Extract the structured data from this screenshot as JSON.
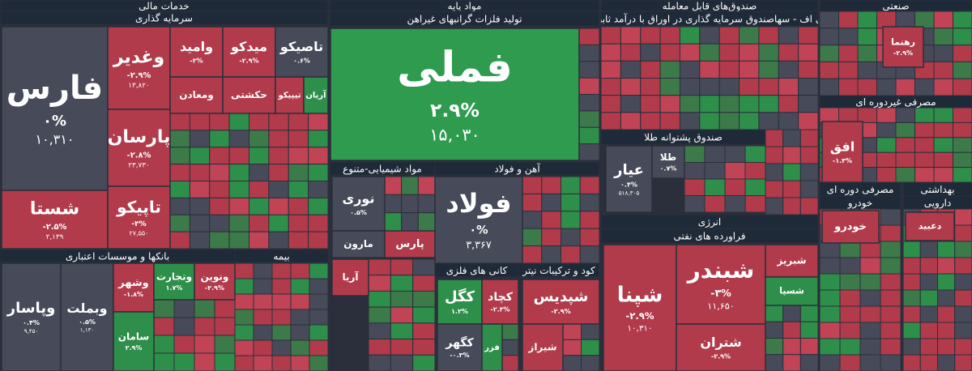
{
  "headers": [
    "خدمات مالی",
    "سرمایه گذاری",
    "بانکها و موسسات اعتباری",
    "بیمه",
    "مواد پایه",
    "تولید فلزات گرانبهای غیراهن",
    "مواد شیمیایی-متنوع",
    "آهن و فولاد",
    "کانی های فلزی",
    "کود و ترکیبات نیتر",
    "صندوق‌های قابل معامله",
    "تی اف - سهاصندوق سرمایه گذاری در اوراق با درآمد ثابت",
    "صندوق پشتوانه طلا",
    "انرژی",
    "فراورده های نفتی",
    "صنعتی",
    "مصرفی غیردوره ای",
    "مصرفی دوره ای",
    "خودرو",
    "بهداشتی",
    "دارویی"
  ],
  "tiles": [
    {
      "name": "فارس",
      "change": "۰%",
      "price": "۱۰,۳۱۰",
      "color": "#474b59"
    },
    {
      "name": "شستا",
      "change": "-۲.۵%",
      "price": "۲,۱۳۹",
      "color": "#b13b4b"
    },
    {
      "name": "وغدیر",
      "change": "-۲.۹%",
      "price": "۱۳,۸۲۰",
      "color": "#b13b4b"
    },
    {
      "name": "پارسان",
      "change": "-۲.۸%",
      "price": "۲۳,۷۳۰",
      "color": "#b13b4b"
    },
    {
      "name": "تاپیکو",
      "change": "-۳%",
      "price": "۲۷,۵۵۰",
      "color": "#b13b4b"
    },
    {
      "name": "وامید",
      "change": "-۳%",
      "color": "#b13b4b"
    },
    {
      "name": "میدکو",
      "change": "-۲.۹%",
      "color": "#b13b4b"
    },
    {
      "name": "تاصیکو",
      "change": "۰.۶%",
      "color": "#474b59"
    },
    {
      "name": "ومعادن",
      "color": "#b13b4b"
    },
    {
      "name": "حکشتی",
      "color": "#b13b4b"
    },
    {
      "name": "تیپیکو",
      "color": "#b13b4b"
    },
    {
      "name": "آریان",
      "color": "#2e8f4a"
    },
    {
      "name": "وپاسار",
      "change": "۰.۴%",
      "price": "۹,۴۵۰",
      "color": "#474b59"
    },
    {
      "name": "وبملت",
      "change": "۰.۵%",
      "price": "۱,۱۳۰",
      "color": "#474b59"
    },
    {
      "name": "وشهر",
      "change": "-۱.۸%",
      "color": "#b13b4b"
    },
    {
      "name": "وتجارت",
      "change": "۱.۷%",
      "color": "#2e8f4a"
    },
    {
      "name": "ونوین",
      "change": "-۲.۹%",
      "color": "#b13b4b"
    },
    {
      "name": "سامان",
      "change": "۲.۹%",
      "color": "#2e8f4a"
    },
    {
      "name": "فملی",
      "change": "۲.۹%",
      "price": "۱۵,۰۳۰",
      "color": "#2e9b4e"
    },
    {
      "name": "نوری",
      "change": "۰.۵%",
      "color": "#474b59"
    },
    {
      "name": "مارون",
      "color": "#474b59"
    },
    {
      "name": "پارس",
      "color": "#b13b4b"
    },
    {
      "name": "آریا",
      "color": "#b13b4b"
    },
    {
      "name": "فولاد",
      "change": "۰%",
      "price": "۳,۳۶۷",
      "color": "#474b59"
    },
    {
      "name": "کگل",
      "change": "۱.۲%",
      "color": "#2e8f4a"
    },
    {
      "name": "کچاد",
      "change": "-۲.۳%",
      "color": "#b13b4b"
    },
    {
      "name": "کگهر",
      "change": "-۰.۳%",
      "color": "#474b59"
    },
    {
      "name": "فزر",
      "color": "#2e8f4a"
    },
    {
      "name": "شپدیس",
      "change": "-۲.۹%",
      "color": "#b13b4b"
    },
    {
      "name": "شیراز",
      "color": "#b13b4b"
    },
    {
      "name": "عیار",
      "change": "۰.۴%",
      "price": "۵۱۸,۳۰۵",
      "color": "#474b59"
    },
    {
      "name": "طلا",
      "change": "۰.۷%",
      "color": "#474b59"
    },
    {
      "name": "شپنا",
      "change": "-۲.۹%",
      "price": "۱۰,۳۱۰",
      "color": "#b13b4b"
    },
    {
      "name": "شبندر",
      "change": "-۳%",
      "price": "۱۱,۶۵۰",
      "color": "#b13b4b"
    },
    {
      "name": "شتران",
      "change": "-۲.۹%",
      "color": "#b13b4b"
    },
    {
      "name": "شبریز",
      "color": "#b13b4b"
    },
    {
      "name": "شسپا",
      "color": "#2e8f4a"
    },
    {
      "name": "افق",
      "change": "-۱.۳%",
      "color": "#b13b4b"
    },
    {
      "name": "رهنما",
      "change": "-۲.۹%",
      "color": "#b13b4b"
    },
    {
      "name": "خودرو",
      "color": "#b13b4b"
    },
    {
      "name": "دعبید",
      "color": "#b13b4b"
    }
  ]
}
